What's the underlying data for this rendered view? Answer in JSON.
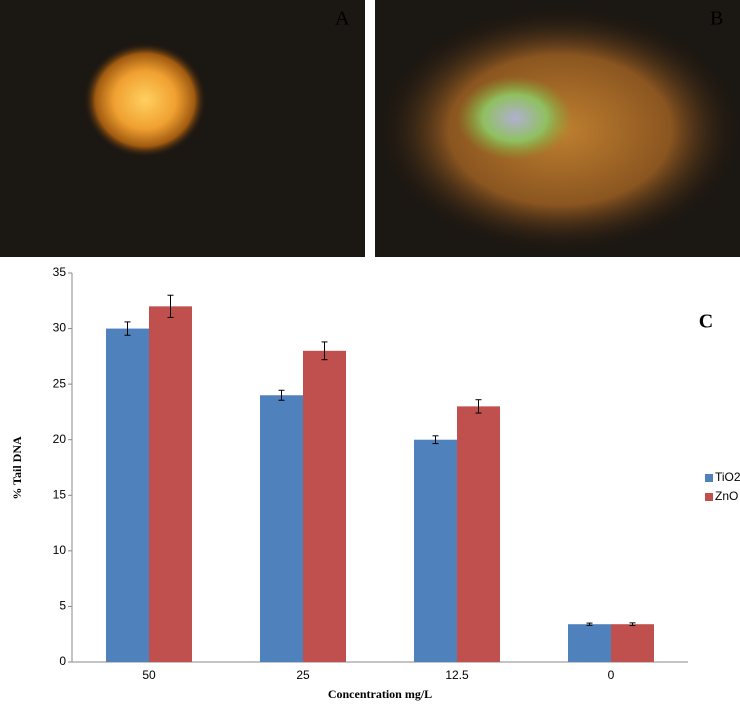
{
  "panel_labels": {
    "a": "A",
    "b": "B"
  },
  "chart_data": {
    "type": "bar",
    "panel_label": "C",
    "x_label": "Concentration mg/L",
    "y_label": "% Tail DNA",
    "categories": [
      "50",
      "25",
      "12.5",
      "0"
    ],
    "series": [
      {
        "name": "TiO2",
        "color": "#4f81bd",
        "values": [
          30,
          24,
          20,
          3.4
        ],
        "errors": [
          0.6,
          0.45,
          0.35,
          0.1
        ]
      },
      {
        "name": "ZnO",
        "color": "#c0504d",
        "values": [
          32,
          28,
          23,
          3.4
        ],
        "errors": [
          1.0,
          0.8,
          0.6,
          0.12
        ]
      }
    ],
    "ylim": [
      0,
      35
    ],
    "yticks": [
      0,
      5,
      10,
      15,
      20,
      25,
      30,
      35
    ],
    "grid": false,
    "legend": "right"
  }
}
